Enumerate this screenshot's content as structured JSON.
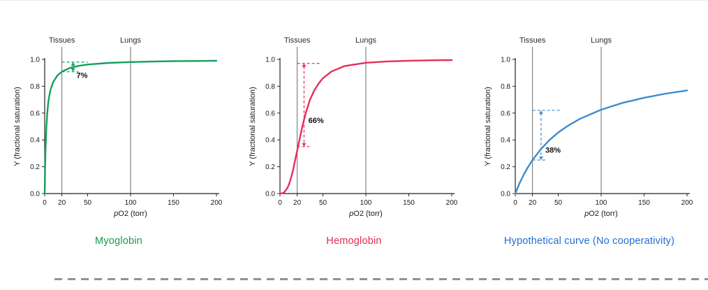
{
  "page": {
    "background": "#ffffff"
  },
  "chart_data": [
    {
      "type": "line",
      "title": "Myoglobin",
      "title_color": "#169a4c",
      "curve_color": "#14a05f",
      "xlabel": "pO2 (torr)",
      "ylabel": "Y (fractional saturation)",
      "xlim": [
        0,
        200
      ],
      "ylim": [
        0,
        1.0
      ],
      "x_ticks": [
        0,
        20,
        50,
        100,
        150,
        200
      ],
      "y_ticks": [
        0.0,
        0.2,
        0.4,
        0.6,
        0.8,
        1.0
      ],
      "grid": false,
      "legend": "none",
      "reference_lines": [
        {
          "x": 20,
          "label": "Tissues"
        },
        {
          "x": 100,
          "label": "Lungs"
        }
      ],
      "x": [
        0,
        0.5,
        1,
        2,
        3,
        4,
        5,
        7,
        10,
        15,
        20,
        30,
        40,
        50,
        75,
        100,
        125,
        150,
        175,
        200
      ],
      "y": [
        0,
        0.2,
        0.333,
        0.5,
        0.6,
        0.667,
        0.714,
        0.778,
        0.833,
        0.882,
        0.909,
        0.938,
        0.952,
        0.962,
        0.974,
        0.98,
        0.984,
        0.987,
        0.988,
        0.99
      ],
      "annotation": {
        "label": "7%",
        "x_from": 20,
        "x_to": 50,
        "arrow_x": 33,
        "y_low": 0.908,
        "y_high": 0.98,
        "label_x": 37,
        "label_y": 0.862
      }
    },
    {
      "type": "line",
      "title": "Hemoglobin",
      "title_color": "#e02b4e",
      "curve_color": "#e62e5c",
      "xlabel": "pO2 (torr)",
      "ylabel": "Y (fractional saturation)",
      "xlim": [
        0,
        200
      ],
      "ylim": [
        0,
        1.0
      ],
      "x_ticks": [
        0,
        20,
        50,
        100,
        150,
        200
      ],
      "y_ticks": [
        0.0,
        0.2,
        0.4,
        0.6,
        0.8,
        1.0
      ],
      "grid": false,
      "legend": "none",
      "reference_lines": [
        {
          "x": 20,
          "label": "Tissues"
        },
        {
          "x": 100,
          "label": "Lungs"
        }
      ],
      "x": [
        0,
        3,
        5,
        8,
        10,
        12,
        15,
        18,
        20,
        22,
        25,
        28,
        30,
        35,
        40,
        45,
        50,
        60,
        75,
        100,
        125,
        150,
        175,
        200
      ],
      "y": [
        0,
        0.003,
        0.01,
        0.035,
        0.06,
        0.1,
        0.17,
        0.26,
        0.32,
        0.38,
        0.47,
        0.55,
        0.6,
        0.7,
        0.77,
        0.82,
        0.86,
        0.91,
        0.95,
        0.975,
        0.985,
        0.99,
        0.993,
        0.995
      ],
      "annotation": {
        "label": "66%",
        "x_from": 20,
        "x_to": 48,
        "arrow_x": 28,
        "y_low": 0.35,
        "y_high": 0.97,
        "label_x": 33,
        "label_y": 0.525
      }
    },
    {
      "type": "line",
      "title": "Hypothetical curve (No cooperativity)",
      "title_color": "#1f6ed1",
      "curve_color": "#3a8ccf",
      "xlabel": "pO2 (torr)",
      "ylabel": "Y (fractional saturation)",
      "xlim": [
        0,
        200
      ],
      "ylim": [
        0,
        1.0
      ],
      "x_ticks": [
        0,
        20,
        50,
        100,
        150,
        200
      ],
      "y_ticks": [
        0.0,
        0.2,
        0.4,
        0.6,
        0.8,
        1.0
      ],
      "grid": false,
      "legend": "none",
      "reference_lines": [
        {
          "x": 20,
          "label": "Tissues"
        },
        {
          "x": 100,
          "label": "Lungs"
        }
      ],
      "x": [
        0,
        5,
        10,
        15,
        20,
        30,
        40,
        50,
        60,
        75,
        100,
        125,
        150,
        175,
        200
      ],
      "y": [
        0,
        0.077,
        0.143,
        0.2,
        0.25,
        0.333,
        0.4,
        0.455,
        0.5,
        0.556,
        0.625,
        0.676,
        0.714,
        0.745,
        0.769
      ],
      "annotation": {
        "label": "38%",
        "x_from": 20,
        "x_to": 52,
        "arrow_x": 30,
        "y_low": 0.25,
        "y_high": 0.62,
        "label_x": 35,
        "label_y": 0.305
      }
    }
  ],
  "divider": {
    "present": true,
    "style": "dashed"
  }
}
